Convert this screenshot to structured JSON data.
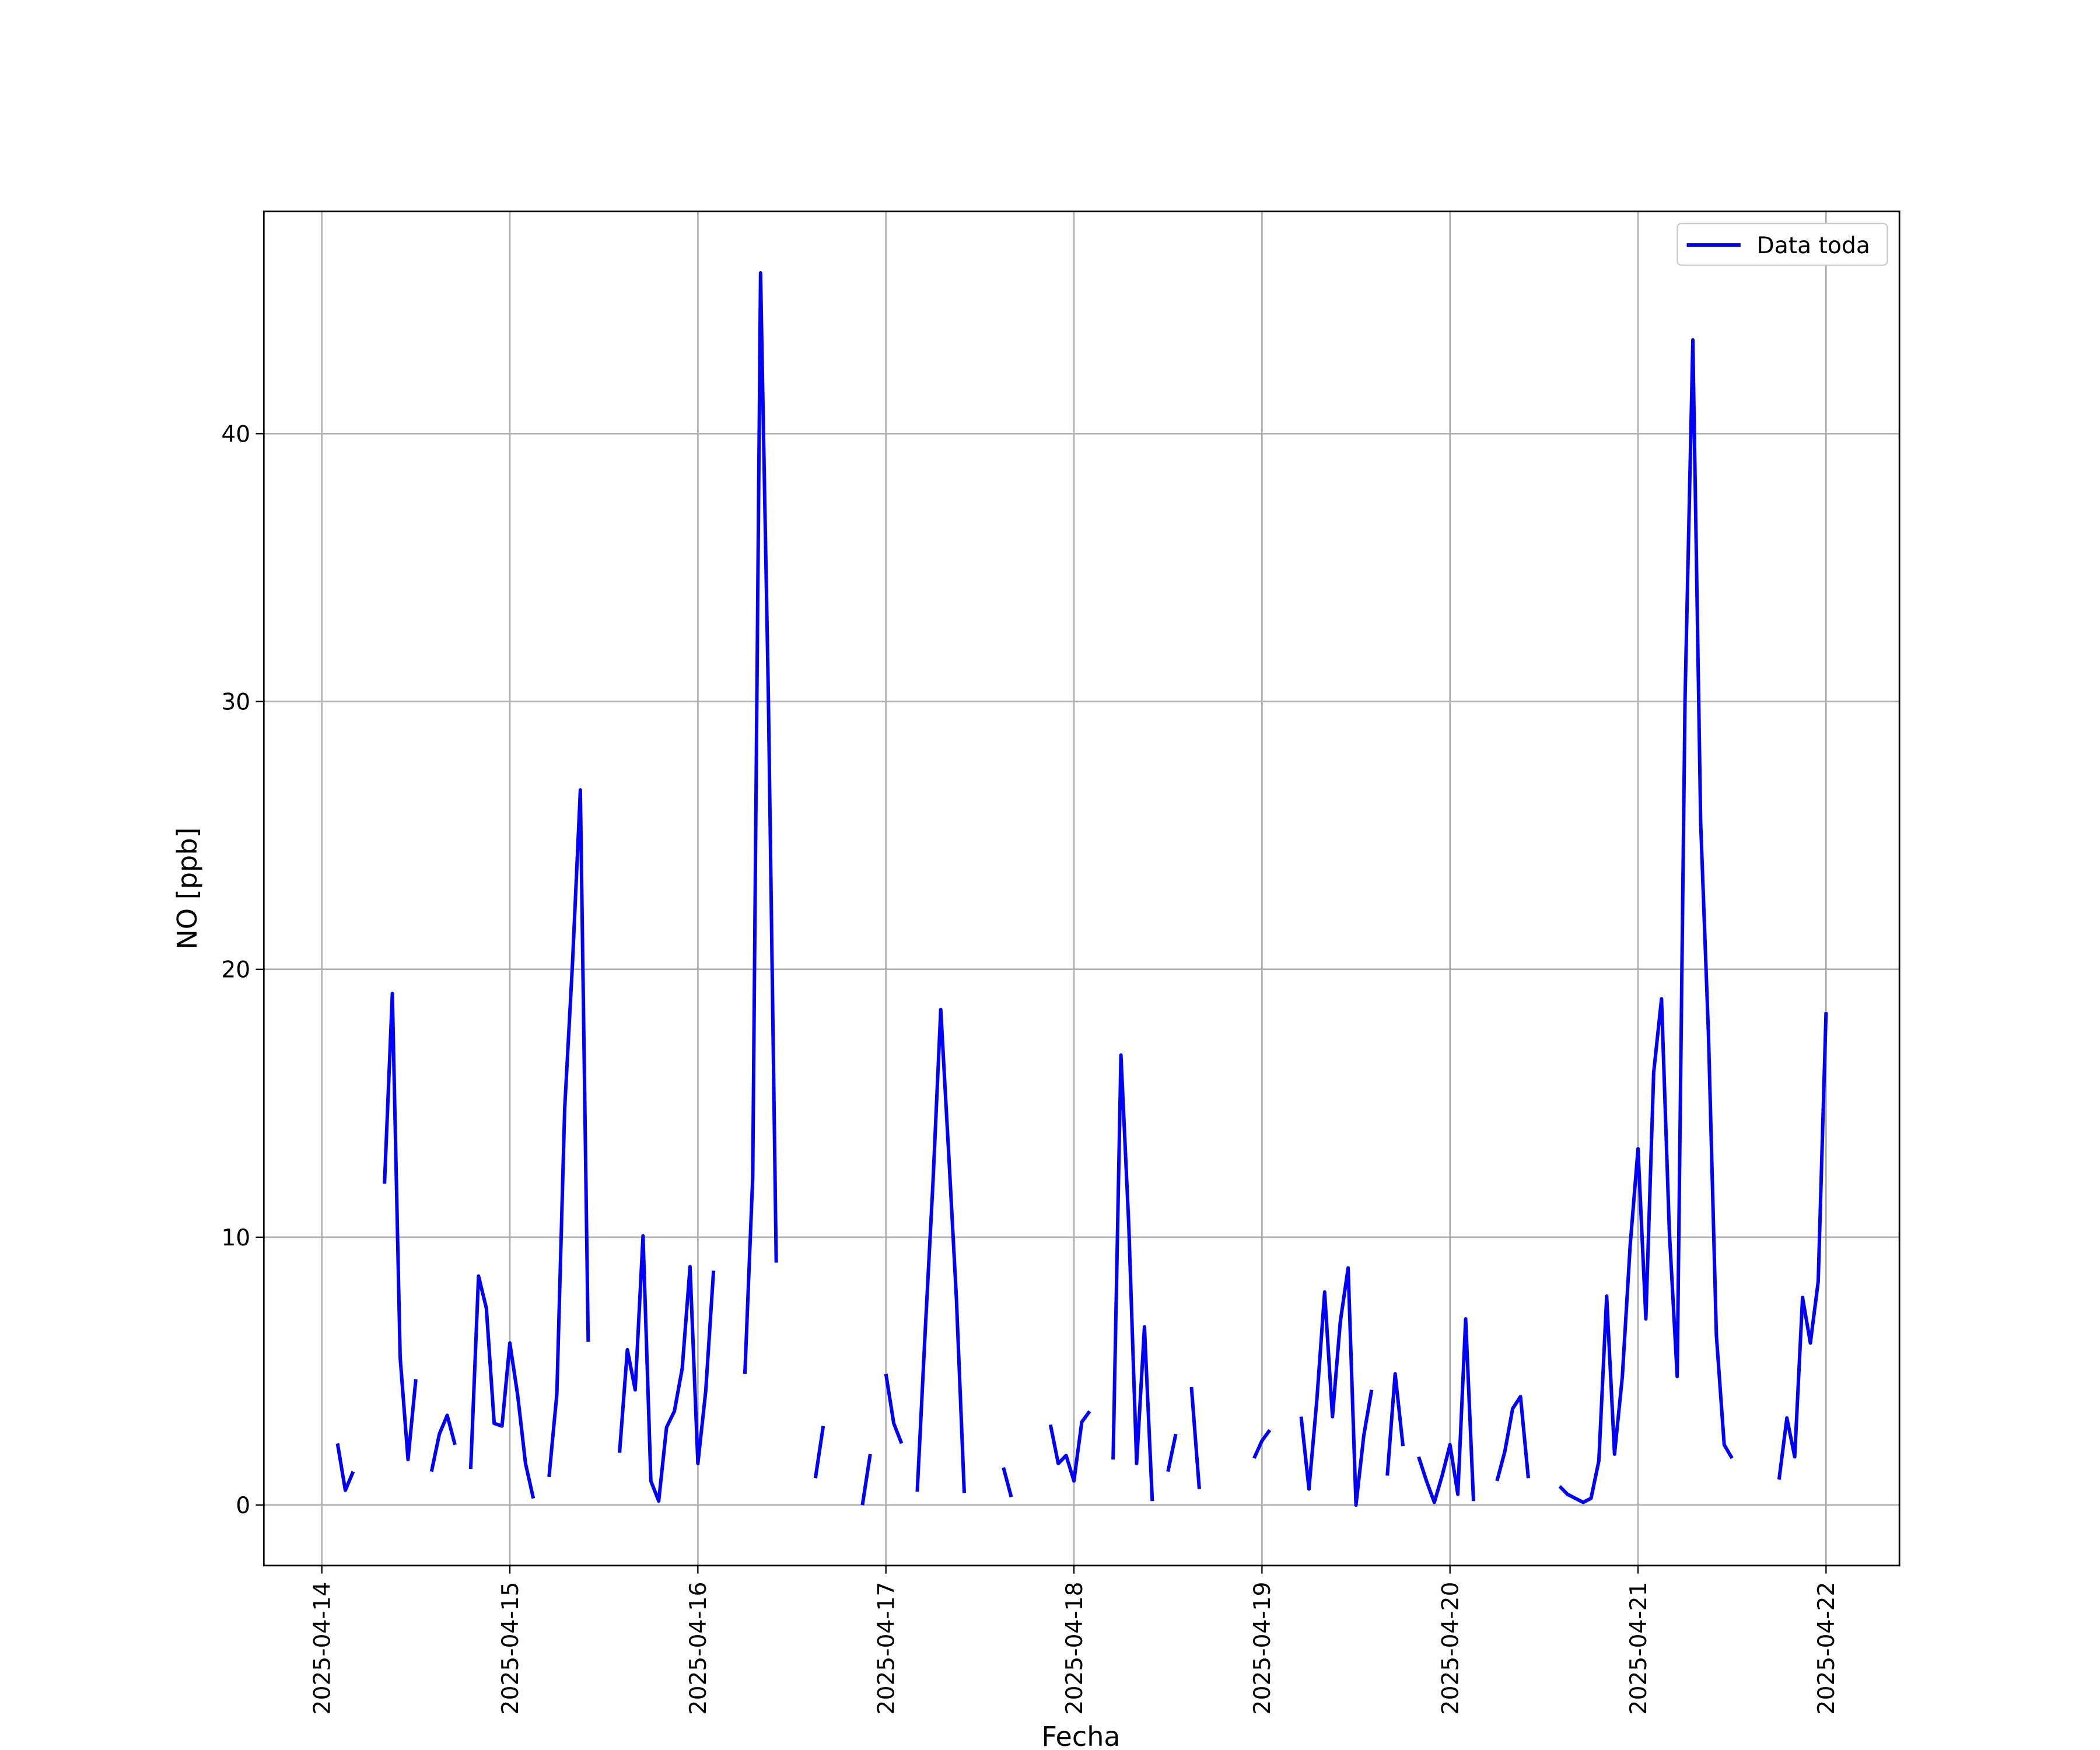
{
  "chart_data": {
    "type": "line",
    "xlabel": "Fecha",
    "ylabel": "NO [ppb]",
    "grid": true,
    "legend": "upper right",
    "xlim": [
      "2025-04-13T16:36",
      "2025-04-22T09:22"
    ],
    "xticks": [
      "2025-04-14",
      "2025-04-15",
      "2025-04-16",
      "2025-04-17",
      "2025-04-18",
      "2025-04-19",
      "2025-04-20",
      "2025-04-21",
      "2025-04-22"
    ],
    "ylim": [
      -2.26,
      48.3
    ],
    "yticks": [
      0,
      10,
      20,
      30,
      40
    ],
    "x": [
      "2025-04-14T02:00",
      "2025-04-14T03:00",
      "2025-04-14T04:00",
      "2025-04-14T05:00",
      "2025-04-14T08:00",
      "2025-04-14T09:00",
      "2025-04-14T10:00",
      "2025-04-14T11:00",
      "2025-04-14T12:00",
      "2025-04-14T13:00",
      "2025-04-14T14:00",
      "2025-04-14T15:00",
      "2025-04-14T16:00",
      "2025-04-14T17:00",
      "2025-04-14T18:00",
      "2025-04-14T19:00",
      "2025-04-14T20:00",
      "2025-04-14T21:00",
      "2025-04-14T22:00",
      "2025-04-14T23:00",
      "2025-04-15T00:00",
      "2025-04-15T01:00",
      "2025-04-15T02:00",
      "2025-04-15T03:00",
      "2025-04-15T04:00",
      "2025-04-15T05:00",
      "2025-04-15T06:00",
      "2025-04-15T07:00",
      "2025-04-15T08:00",
      "2025-04-15T09:00",
      "2025-04-15T10:00",
      "2025-04-15T11:00",
      "2025-04-15T14:00",
      "2025-04-15T15:00",
      "2025-04-15T16:00",
      "2025-04-15T17:00",
      "2025-04-15T18:00",
      "2025-04-15T19:00",
      "2025-04-15T20:00",
      "2025-04-15T21:00",
      "2025-04-15T22:00",
      "2025-04-15T23:00",
      "2025-04-16T00:00",
      "2025-04-16T01:00",
      "2025-04-16T02:00",
      "2025-04-16T03:00",
      "2025-04-16T06:00",
      "2025-04-16T07:00",
      "2025-04-16T08:00",
      "2025-04-16T09:00",
      "2025-04-16T10:00",
      "2025-04-16T11:00",
      "2025-04-16T15:00",
      "2025-04-16T16:00",
      "2025-04-16T17:00",
      "2025-04-16T21:00",
      "2025-04-16T22:00",
      "2025-04-16T23:00",
      "2025-04-17T00:00",
      "2025-04-17T01:00",
      "2025-04-17T02:00",
      "2025-04-17T03:00",
      "2025-04-17T04:00",
      "2025-04-17T05:00",
      "2025-04-17T06:00",
      "2025-04-17T07:00",
      "2025-04-17T08:00",
      "2025-04-17T09:00",
      "2025-04-17T10:00",
      "2025-04-17T11:00",
      "2025-04-17T15:00",
      "2025-04-17T16:00",
      "2025-04-17T17:00",
      "2025-04-17T21:00",
      "2025-04-17T22:00",
      "2025-04-17T23:00",
      "2025-04-18T00:00",
      "2025-04-18T01:00",
      "2025-04-18T02:00",
      "2025-04-18T03:00",
      "2025-04-18T05:00",
      "2025-04-18T06:00",
      "2025-04-18T07:00",
      "2025-04-18T08:00",
      "2025-04-18T09:00",
      "2025-04-18T10:00",
      "2025-04-18T11:00",
      "2025-04-18T12:00",
      "2025-04-18T13:00",
      "2025-04-18T14:00",
      "2025-04-18T15:00",
      "2025-04-18T16:00",
      "2025-04-18T17:00",
      "2025-04-18T23:00",
      "2025-04-19T00:00",
      "2025-04-19T01:00",
      "2025-04-19T02:00",
      "2025-04-19T05:00",
      "2025-04-19T06:00",
      "2025-04-19T07:00",
      "2025-04-19T08:00",
      "2025-04-19T09:00",
      "2025-04-19T10:00",
      "2025-04-19T11:00",
      "2025-04-19T12:00",
      "2025-04-19T13:00",
      "2025-04-19T14:00",
      "2025-04-19T15:00",
      "2025-04-19T16:00",
      "2025-04-19T17:00",
      "2025-04-19T18:00",
      "2025-04-19T19:00",
      "2025-04-19T20:00",
      "2025-04-19T21:00",
      "2025-04-19T22:00",
      "2025-04-19T23:00",
      "2025-04-20T00:00",
      "2025-04-20T01:00",
      "2025-04-20T02:00",
      "2025-04-20T03:00",
      "2025-04-20T04:00",
      "2025-04-20T06:00",
      "2025-04-20T07:00",
      "2025-04-20T08:00",
      "2025-04-20T09:00",
      "2025-04-20T10:00",
      "2025-04-20T11:00",
      "2025-04-20T14:00",
      "2025-04-20T15:00",
      "2025-04-20T16:00",
      "2025-04-20T17:00",
      "2025-04-20T18:00",
      "2025-04-20T19:00",
      "2025-04-20T20:00",
      "2025-04-20T21:00",
      "2025-04-20T22:00",
      "2025-04-20T23:00",
      "2025-04-21T00:00",
      "2025-04-21T01:00",
      "2025-04-21T02:00",
      "2025-04-21T03:00",
      "2025-04-21T04:00",
      "2025-04-21T05:00",
      "2025-04-21T06:00",
      "2025-04-21T07:00",
      "2025-04-21T08:00",
      "2025-04-21T09:00",
      "2025-04-21T10:00",
      "2025-04-21T11:00",
      "2025-04-21T12:00",
      "2025-04-21T13:00",
      "2025-04-21T18:00",
      "2025-04-21T19:00",
      "2025-04-21T20:00",
      "2025-04-21T21:00",
      "2025-04-21T22:00",
      "2025-04-21T23:00",
      "2025-04-22T00:00"
    ],
    "series": [
      {
        "name": "Data toda",
        "color": "#0000ff",
        "values": [
          2.3,
          0.55,
          1.25,
          null,
          12.0,
          19.1,
          5.5,
          1.7,
          4.7,
          null,
          1.25,
          2.65,
          3.35,
          2.25,
          null,
          1.35,
          8.55,
          7.35,
          3.05,
          2.95,
          6.05,
          4.1,
          1.55,
          0.25,
          null,
          1.05,
          4.15,
          14.8,
          20.25,
          26.7,
          6.1,
          null,
          1.95,
          5.8,
          4.3,
          10.05,
          0.9,
          0.15,
          2.9,
          3.5,
          5.1,
          8.9,
          1.55,
          4.25,
          8.75,
          null,
          4.9,
          12.25,
          46.0,
          30.15,
          9.05,
          null,
          1.0,
          2.95,
          null,
          0.0,
          1.9,
          null,
          4.9,
          3.05,
          2.3,
          null,
          0.5,
          6.4,
          12.0,
          18.5,
          13.2,
          7.7,
          0.45,
          null,
          1.4,
          0.3,
          null,
          3.0,
          1.55,
          1.85,
          0.9,
          3.1,
          3.5,
          null,
          1.7,
          16.8,
          10.45,
          1.55,
          6.65,
          0.15,
          null,
          1.25,
          2.65,
          null,
          4.4,
          0.6,
          null,
          1.75,
          2.4,
          2.8,
          null,
          3.3,
          0.6,
          3.9,
          7.95,
          3.3,
          6.85,
          8.85,
          0.0,
          2.6,
          4.3,
          null,
          1.1,
          4.9,
          2.2,
          null,
          1.8,
          0.9,
          0.1,
          1.1,
          2.25,
          0.4,
          6.95,
          0.15,
          null,
          0.9,
          2.0,
          3.6,
          4.05,
          1.0,
          null,
          0.7,
          0.4,
          0.25,
          0.1,
          0.25,
          1.65,
          7.8,
          1.9,
          4.8,
          9.7,
          13.3,
          6.95,
          16.15,
          18.9,
          10.2,
          4.8,
          30.05,
          43.5,
          25.45,
          17.5,
          6.35,
          2.25,
          1.75,
          null,
          0.95,
          3.25,
          1.8,
          7.75,
          6.05,
          8.35,
          18.4
        ]
      }
    ]
  }
}
